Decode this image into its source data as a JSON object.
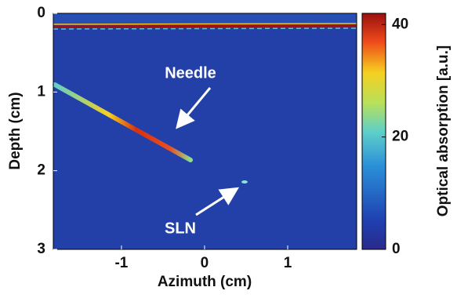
{
  "chart_data": {
    "type": "image",
    "xlabel": "Azimuth (cm)",
    "ylabel": "Depth (cm)",
    "xlim": [
      -1.82,
      1.83
    ],
    "xticks": [
      -1,
      0,
      1
    ],
    "ylim": [
      3,
      0
    ],
    "yticks": [
      0,
      1,
      2,
      3
    ],
    "colorbar": {
      "label": "Optical absorption [a.u.]",
      "lim": [
        0,
        42
      ],
      "ticks": [
        0,
        20,
        40
      ]
    },
    "annotations": [
      {
        "text": "Needle"
      },
      {
        "text": "SLN"
      }
    ]
  }
}
